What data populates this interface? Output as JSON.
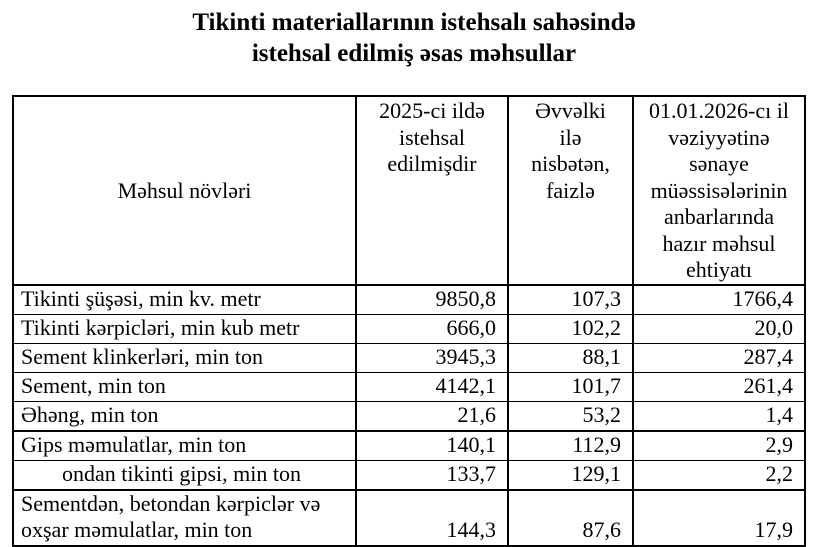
{
  "colors": {
    "background": "#ffffff",
    "text": "#000000",
    "border": "#000000"
  },
  "title": {
    "line1": "Tikinti materiallarının istehsalı sahəsində",
    "line2": "istehsal edilmiş əsas məhsullar"
  },
  "table": {
    "headers": [
      {
        "key": "product-types",
        "text": "Məhsul növləri"
      },
      {
        "key": "produced-in-2025",
        "text": "2025-ci ildə\nistehsal\nedilmişdir"
      },
      {
        "key": "percent-vs-previous-year",
        "text": "Əvvəlki\nilə\nnisbətən,\nfaizlə"
      },
      {
        "key": "warehouse-stock-01-01-2026",
        "text": "01.01.2026-cı il\nvəziyyətinə\nsənaye\nmüəssisələrinin\nanbarlarında\nhazır məhsul\nehtiyatı"
      }
    ],
    "rows": [
      {
        "label": "Tikinti şüşəsi, min kv. metr",
        "values": [
          "9850,8",
          "107,3",
          "1766,4"
        ]
      },
      {
        "label": "Tikinti kərpicləri, min kub metr",
        "values": [
          "666,0",
          "102,2",
          "20,0"
        ]
      },
      {
        "label": "Sement klinkerləri, min ton",
        "values": [
          "3945,3",
          "88,1",
          "287,4"
        ]
      },
      {
        "label": "Sement, min ton",
        "values": [
          "4142,1",
          "101,7",
          "261,4"
        ]
      },
      {
        "label": "Əhəng, min ton",
        "values": [
          "21,6",
          "53,2",
          "1,4"
        ]
      },
      {
        "label": "Gips məmulatlar, min ton",
        "values": [
          "140,1",
          "112,9",
          "2,9"
        ],
        "thick_top": true
      },
      {
        "label": "ondan tikinti gipsi, min ton",
        "values": [
          "133,7",
          "129,1",
          "2,2"
        ],
        "indent": true
      },
      {
        "label": "Sementdən, betondan kərpiclər və\noxşar məmulatlar, min ton",
        "values": [
          "144,3",
          "87,6",
          "17,9"
        ],
        "thick_top": true,
        "tall": true
      }
    ]
  }
}
